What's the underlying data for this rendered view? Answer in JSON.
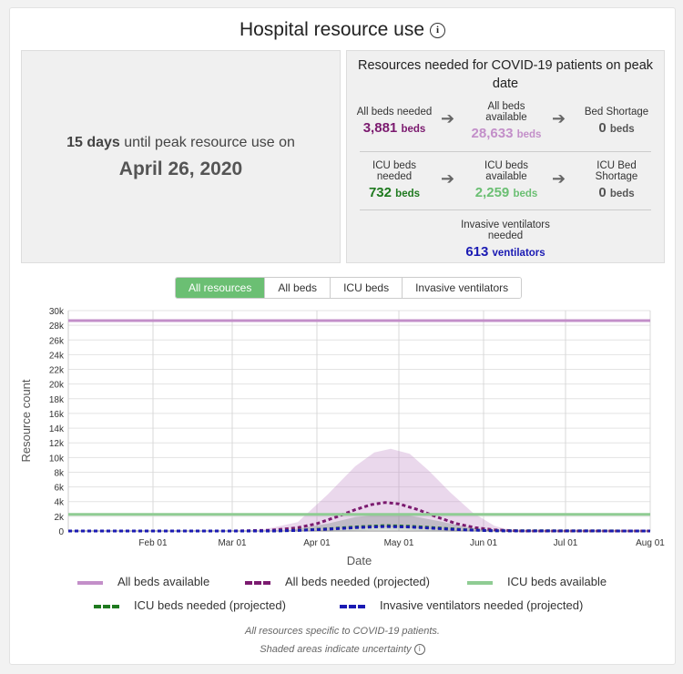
{
  "title": "Hospital resource use",
  "info_icon": "ⓘ",
  "peak": {
    "days": "15 days",
    "suffix": " until peak resource use on",
    "date": "April 26, 2020"
  },
  "resources": {
    "title": "Resources needed for COVID-19 patients on peak date",
    "all_beds_needed": {
      "label": "All beds needed",
      "value": "3,881",
      "unit": "beds",
      "color": "#7b1a6f"
    },
    "all_beds_available": {
      "label": "All beds available",
      "value": "28,633",
      "unit": "beds",
      "color": "#c38fc9"
    },
    "bed_shortage": {
      "label": "Bed Shortage",
      "value": "0",
      "unit": "beds",
      "color": "#555555"
    },
    "icu_beds_needed": {
      "label": "ICU beds needed",
      "value": "732",
      "unit": "beds",
      "color": "#1f7a1f"
    },
    "icu_beds_available": {
      "label": "ICU beds available",
      "value": "2,259",
      "unit": "beds",
      "color": "#6bbf73"
    },
    "icu_bed_shortage": {
      "label": "ICU Bed Shortage",
      "value": "0",
      "unit": "beds",
      "color": "#555555"
    },
    "ventilators": {
      "label": "Invasive ventilators needed",
      "value": "613",
      "unit": "ventilators",
      "color": "#1a1ab3"
    }
  },
  "tabs": [
    "All resources",
    "All beds",
    "ICU beds",
    "Invasive ventilators"
  ],
  "active_tab": 0,
  "legend": [
    {
      "label": "All beds available",
      "color": "#c38fc9",
      "style": "solid"
    },
    {
      "label": "All beds needed (projected)",
      "color": "#7b1a6f",
      "style": "dashed"
    },
    {
      "label": "ICU beds available",
      "color": "#8fcc93",
      "style": "solid"
    },
    {
      "label": "ICU beds needed (projected)",
      "color": "#1f7a1f",
      "style": "dashed"
    },
    {
      "label": "Invasive ventilators needed (projected)",
      "color": "#1a1ab3",
      "style": "dashed"
    }
  ],
  "footnote1": "All resources specific to COVID-19 patients.",
  "footnote2": "Shaded areas indicate uncertainty",
  "chart_data": {
    "type": "line",
    "xlabel": "Date",
    "ylabel": "Resource count",
    "ylim": [
      0,
      30000
    ],
    "yticks": [
      0,
      2000,
      4000,
      6000,
      8000,
      10000,
      12000,
      14000,
      16000,
      18000,
      20000,
      22000,
      24000,
      26000,
      28000,
      30000
    ],
    "ytick_labels": [
      "0",
      "2k",
      "4k",
      "6k",
      "8k",
      "10k",
      "12k",
      "14k",
      "16k",
      "18k",
      "20k",
      "22k",
      "24k",
      "26k",
      "28k",
      "30k"
    ],
    "xlim": [
      "2020-01-01",
      "2020-08-01"
    ],
    "xticks": [
      "2020-02-01",
      "2020-03-01",
      "2020-04-01",
      "2020-05-01",
      "2020-06-01",
      "2020-07-01",
      "2020-08-01"
    ],
    "xtick_labels": [
      "Feb 01",
      "Mar 01",
      "Apr 01",
      "May 01",
      "Jun 01",
      "Jul 01",
      "Aug 01"
    ],
    "grid": true,
    "series": [
      {
        "name": "All beds available",
        "x": [
          "2020-01-01",
          "2020-08-01"
        ],
        "y": [
          28633,
          28633
        ]
      },
      {
        "name": "All beds needed (projected)",
        "x": [
          "2020-01-01",
          "2020-03-01",
          "2020-03-15",
          "2020-03-25",
          "2020-04-01",
          "2020-04-08",
          "2020-04-15",
          "2020-04-21",
          "2020-04-26",
          "2020-05-01",
          "2020-05-08",
          "2020-05-15",
          "2020-05-22",
          "2020-05-29",
          "2020-06-05",
          "2020-06-15",
          "2020-08-01"
        ],
        "y": [
          0,
          0,
          100,
          450,
          1000,
          1900,
          2900,
          3600,
          3881,
          3700,
          2900,
          1900,
          1000,
          450,
          150,
          0,
          0
        ]
      },
      {
        "name": "ICU beds available",
        "x": [
          "2020-01-01",
          "2020-08-01"
        ],
        "y": [
          2259,
          2259
        ]
      },
      {
        "name": "ICU beds needed (projected)",
        "x": [
          "2020-01-01",
          "2020-03-15",
          "2020-03-25",
          "2020-04-05",
          "2020-04-15",
          "2020-04-26",
          "2020-05-05",
          "2020-05-15",
          "2020-05-25",
          "2020-06-05",
          "2020-08-01"
        ],
        "y": [
          0,
          0,
          100,
          300,
          550,
          732,
          650,
          420,
          180,
          40,
          0
        ]
      },
      {
        "name": "Invasive ventilators needed (projected)",
        "x": [
          "2020-01-01",
          "2020-03-15",
          "2020-03-25",
          "2020-04-05",
          "2020-04-15",
          "2020-04-26",
          "2020-05-05",
          "2020-05-15",
          "2020-05-25",
          "2020-06-05",
          "2020-08-01"
        ],
        "y": [
          0,
          0,
          80,
          250,
          460,
          613,
          540,
          350,
          150,
          30,
          0
        ]
      }
    ],
    "uncertainty": [
      {
        "name": "All beds needed (projected)",
        "x": [
          "2020-03-10",
          "2020-03-25",
          "2020-04-05",
          "2020-04-15",
          "2020-04-22",
          "2020-04-28",
          "2020-05-05",
          "2020-05-12",
          "2020-05-20",
          "2020-05-28",
          "2020-06-05",
          "2020-06-12"
        ],
        "lower": [
          0,
          0,
          100,
          300,
          500,
          500,
          400,
          250,
          100,
          0,
          0,
          0
        ],
        "upper": [
          0,
          1200,
          5000,
          8800,
          10700,
          11200,
          10500,
          8200,
          5200,
          2500,
          700,
          0
        ]
      },
      {
        "name": "ICU beds needed (projected)",
        "x": [
          "2020-03-20",
          "2020-04-05",
          "2020-04-15",
          "2020-04-26",
          "2020-05-05",
          "2020-05-15",
          "2020-05-25",
          "2020-06-05"
        ],
        "lower": [
          0,
          50,
          100,
          150,
          130,
          80,
          30,
          0
        ],
        "upper": [
          0,
          1000,
          1900,
          2300,
          2100,
          1400,
          600,
          0
        ]
      }
    ]
  }
}
